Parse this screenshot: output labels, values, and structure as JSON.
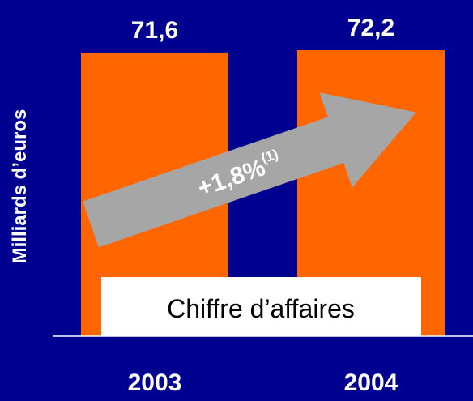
{
  "chart_data": {
    "type": "bar",
    "categories": [
      "2003",
      "2004"
    ],
    "values": [
      71.6,
      72.2
    ],
    "value_labels": [
      "71,6",
      "72,2"
    ],
    "color": "#ff6600",
    "ylabel": "Milliards d’euros",
    "series_label": "Chiffre d’affaires",
    "annotation": {
      "text": "+1,8%",
      "note": "(1)"
    }
  }
}
